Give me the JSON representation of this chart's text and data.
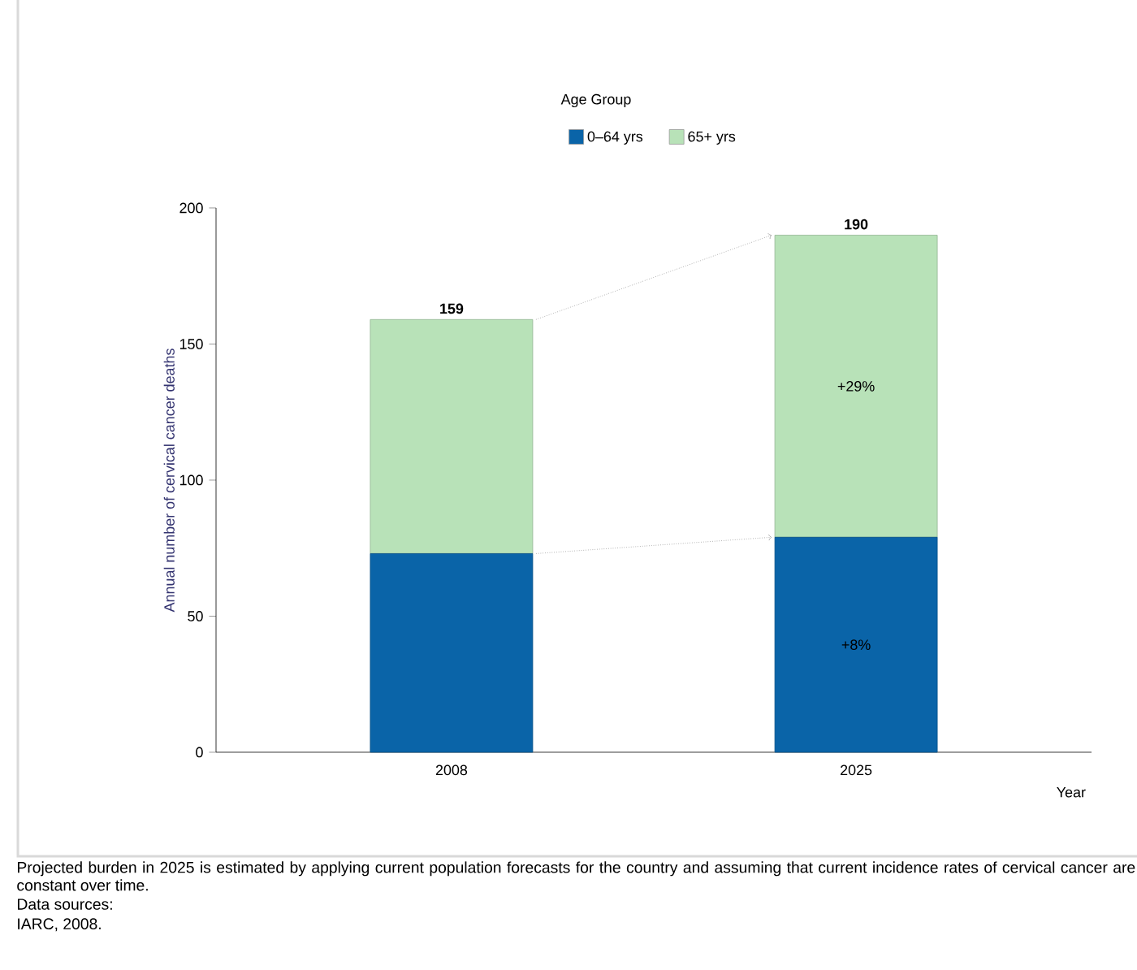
{
  "chart_data": {
    "type": "bar",
    "stacked": true,
    "xlabel": "Year",
    "ylabel": "Annual number of cervical cancer deaths",
    "legend_title": "Age Group",
    "legend": "top",
    "categories": [
      "2008",
      "2025"
    ],
    "series": [
      {
        "name": "0–64 yrs",
        "color": "#0a64a8",
        "values": [
          73,
          79
        ]
      },
      {
        "name": "65+ yrs",
        "color": "#b8e2b8",
        "values": [
          86,
          111
        ]
      }
    ],
    "totals": [
      "159",
      "190"
    ],
    "ylim": [
      0,
      200
    ],
    "yticks": [
      0,
      50,
      100,
      150,
      200
    ],
    "annotations": [
      "+29%",
      "+8%",
      "Projected burden in 2025 is estimated by applying current population forecasts for the country and assuming that current incidence rates of cervical cancer are constant over time.",
      "Data sources:",
      "IARC, 2008."
    ]
  }
}
